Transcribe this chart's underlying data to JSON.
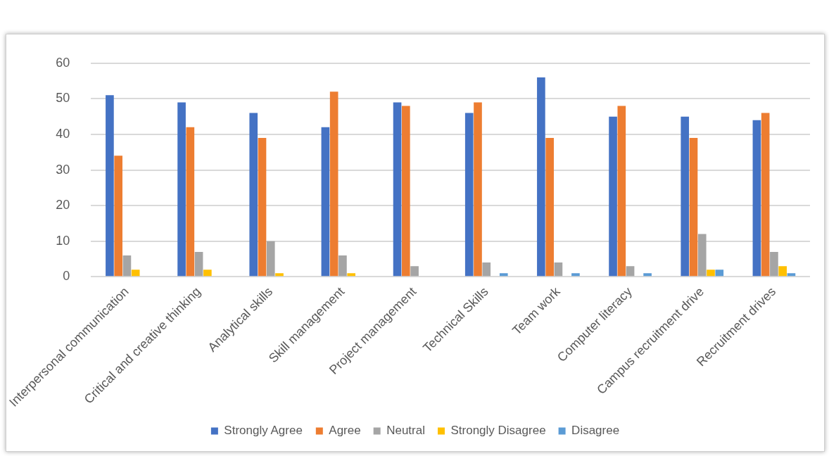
{
  "chart_data": {
    "type": "bar",
    "categories": [
      "Interpersonal communication",
      "Critical and creative thinking",
      "Analytical skills",
      "Skill management",
      "Project management",
      "Technical Skills",
      "Team work",
      "Computer literacy",
      "Campus recruitment drive",
      "Recruitment drives"
    ],
    "series": [
      {
        "name": "Strongly Agree",
        "color": "#4472c4",
        "values": [
          51,
          49,
          46,
          42,
          49,
          46,
          56,
          45,
          45,
          44
        ]
      },
      {
        "name": "Agree",
        "color": "#ed7d31",
        "values": [
          34,
          42,
          39,
          52,
          48,
          49,
          39,
          48,
          39,
          46
        ]
      },
      {
        "name": "Neutral",
        "color": "#a5a5a5",
        "values": [
          6,
          7,
          10,
          6,
          3,
          4,
          4,
          3,
          12,
          7
        ]
      },
      {
        "name": "Strongly Disagree",
        "color": "#ffc000",
        "values": [
          2,
          2,
          1,
          1,
          0,
          0,
          0,
          0,
          2,
          3
        ]
      },
      {
        "name": "Disagree",
        "color": "#5b9bd5",
        "values": [
          0,
          0,
          0,
          0,
          0,
          1,
          1,
          1,
          2,
          1
        ]
      }
    ],
    "ylim": [
      0,
      60
    ],
    "yticks": [
      0,
      10,
      20,
      30,
      40,
      50,
      60
    ],
    "grid": "y",
    "legend": "bottom"
  }
}
